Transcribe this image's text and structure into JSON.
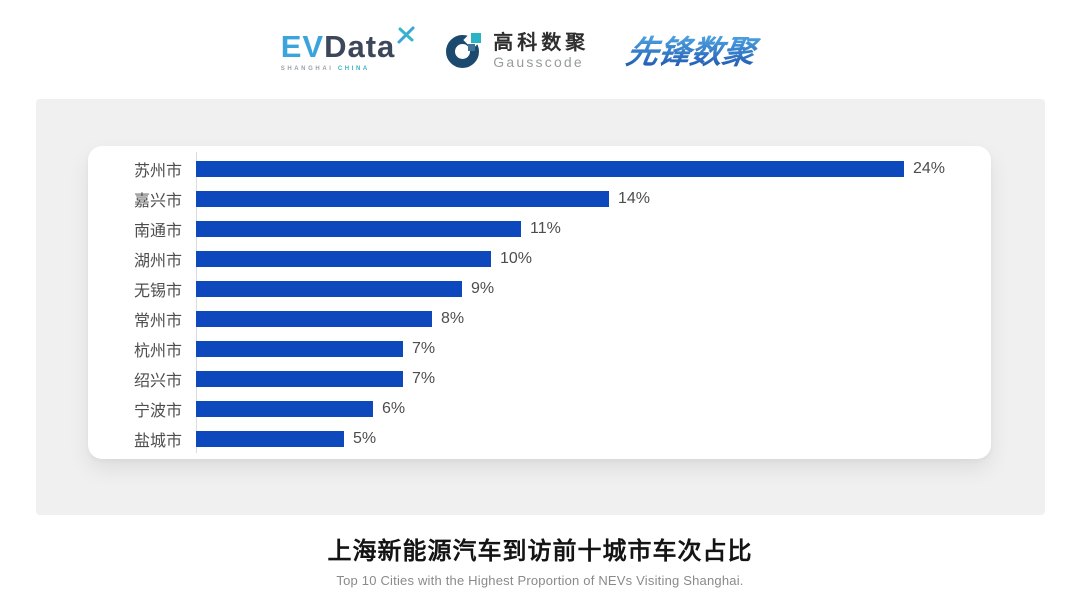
{
  "header": {
    "evdata": {
      "prefix": "EV",
      "suffix": "Data",
      "sub_left": "SHANGHAI",
      "sub_right": "CHINA"
    },
    "gausscode": {
      "name_cn": "高科数聚",
      "name_en": "Gausscode"
    },
    "xianfeng": {
      "wordmark": "先锋数聚"
    }
  },
  "chart_data": {
    "type": "bar",
    "orientation": "horizontal",
    "title": "上海新能源汽车到访前十城市车次占比",
    "subtitle": "Top 10 Cities with the Highest Proportion of  NEVs Visiting Shanghai.",
    "categories": [
      "苏州市",
      "嘉兴市",
      "南通市",
      "湖州市",
      "无锡市",
      "常州市",
      "杭州市",
      "绍兴市",
      "宁波市",
      "盐城市"
    ],
    "values": [
      24,
      14,
      11,
      10,
      9,
      8,
      7,
      7,
      6,
      5
    ],
    "labels": [
      "24%",
      "14%",
      "11%",
      "10%",
      "9%",
      "8%",
      "7%",
      "7%",
      "6%",
      "5%"
    ],
    "xlabel": "",
    "ylabel": "",
    "xlim": [
      0,
      24
    ],
    "grid": false,
    "legend": false
  },
  "colors": {
    "bar": "#0d49bd",
    "axis_line": "#dcdcdc",
    "panel_bg": "#f0f0f0",
    "card_bg": "#ffffff",
    "category_text": "#4d4d4d",
    "value_text": "#4d4d4d",
    "title_text": "#141414",
    "subtitle_text": "#8a8a8a",
    "evdata_blue": "#3ba4da",
    "evdata_dark": "#3c4759",
    "evdata_teal": "#35b6c9",
    "gauss_navy": "#1c4a6e",
    "gauss_teal": "#2ab3c5",
    "pioneer_light": "#4fa6e3",
    "pioneer_dark": "#1e55af"
  }
}
